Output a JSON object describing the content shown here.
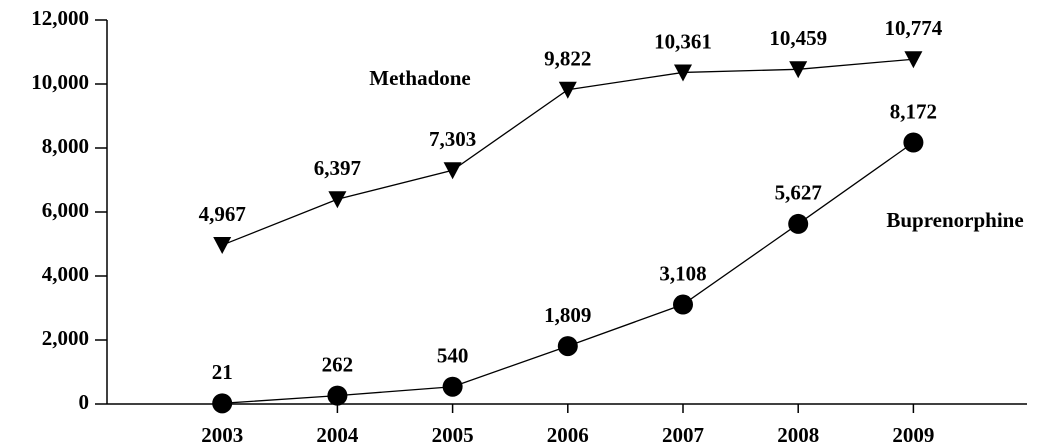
{
  "chart_data": {
    "type": "line",
    "categories": [
      "2003",
      "2004",
      "2005",
      "2006",
      "2007",
      "2008",
      "2009"
    ],
    "series": [
      {
        "name": "Methadone",
        "color": "#000000",
        "marker": "triangle-down",
        "values": [
          4967,
          6397,
          7303,
          9822,
          10361,
          10459,
          10774
        ],
        "value_labels": [
          "4,967",
          "6,397",
          "7,303",
          "9,822",
          "10,361",
          "10,459",
          "10,774"
        ]
      },
      {
        "name": "Buprenorphine",
        "color": "#000000",
        "marker": "circle",
        "values": [
          21,
          262,
          540,
          1809,
          3108,
          5627,
          8172
        ],
        "value_labels": [
          "21",
          "262",
          "540",
          "1,809",
          "3,108",
          "5,627",
          "8,172"
        ]
      }
    ],
    "ylim": [
      0,
      12000
    ],
    "yticks": [
      0,
      {
        "value": 2000,
        "label": "2,000"
      },
      {
        "value": 4000,
        "label": "4,000"
      },
      {
        "value": 6000,
        "label": "6,000"
      },
      {
        "value": 8000,
        "label": "8,000"
      },
      {
        "value": 10000,
        "label": "10,000"
      },
      {
        "value": 12000,
        "label": "12,000"
      }
    ],
    "grid": false
  }
}
